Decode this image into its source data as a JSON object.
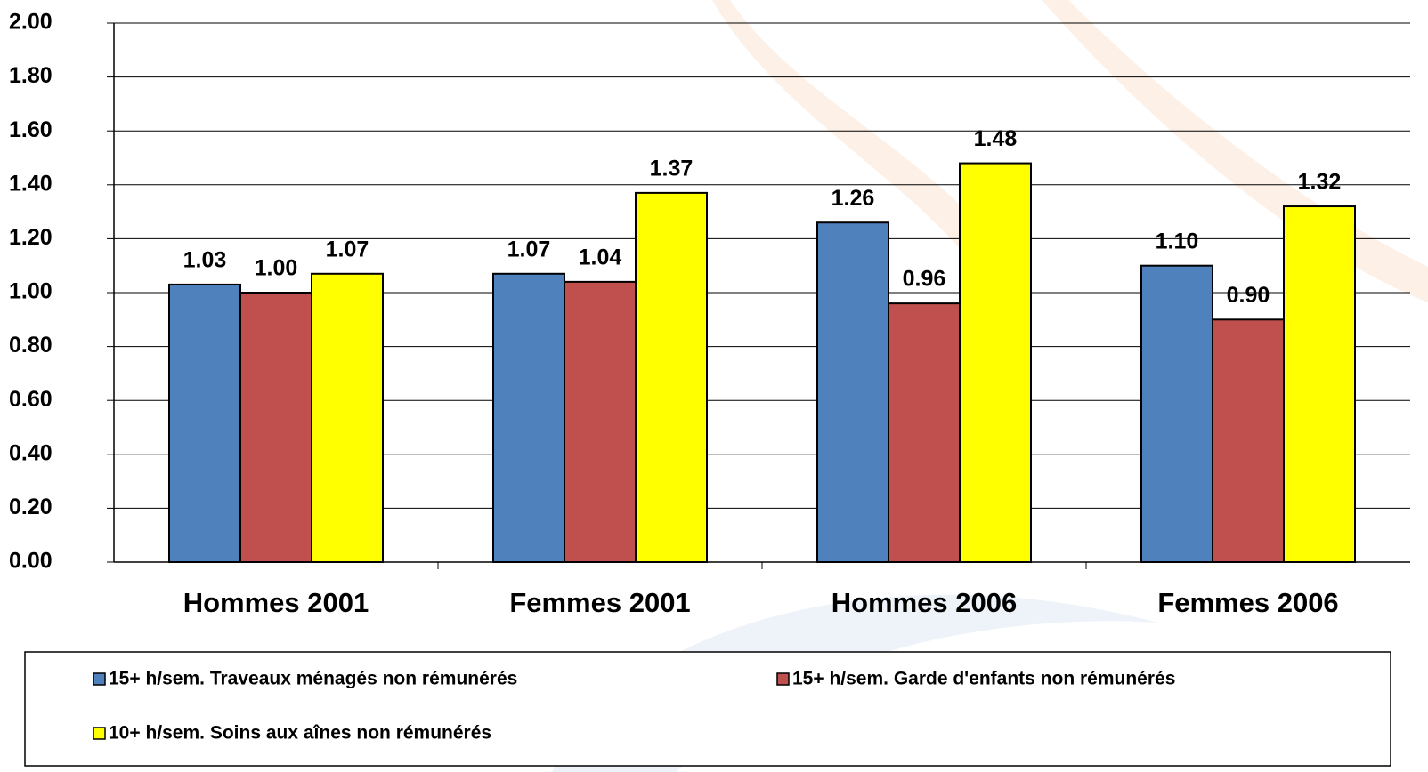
{
  "chart_data": {
    "type": "bar",
    "categories": [
      "Hommes  2001",
      "Femmes  2001",
      "Hommes  2006",
      "Femmes  2006"
    ],
    "series": [
      {
        "name": "15+ h/sem.  Traveaux ménagés non rémunérés",
        "color": "#4f81bd",
        "values": [
          1.03,
          1.07,
          1.26,
          1.1
        ],
        "value_labels": [
          "1.03",
          "1.07",
          "1.26",
          "1.10"
        ]
      },
      {
        "name": "15+ h/sem.  Garde d'enfants non rémunérés",
        "color": "#c0504d",
        "values": [
          1.0,
          1.04,
          0.96,
          0.9
        ],
        "value_labels": [
          "1.00",
          "1.04",
          "0.96",
          "0.90"
        ]
      },
      {
        "name": "10+ h/sem. Soins aux aînes non rémunérés",
        "color": "#ffff00",
        "values": [
          1.07,
          1.37,
          1.48,
          1.32
        ],
        "value_labels": [
          "1.07",
          "1.37",
          "1.48",
          "1.32"
        ]
      }
    ],
    "ylim": [
      0,
      2
    ],
    "yticks": [
      {
        "value": 0,
        "label": "0.00"
      },
      {
        "value": 0.2,
        "label": "0.20"
      },
      {
        "value": 0.4,
        "label": "0.40"
      },
      {
        "value": 0.6,
        "label": "0.60"
      },
      {
        "value": 0.8,
        "label": "0.80"
      },
      {
        "value": 1,
        "label": "1.00"
      },
      {
        "value": 1.2,
        "label": "1.20"
      },
      {
        "value": 1.4,
        "label": "1.40"
      },
      {
        "value": 1.6,
        "label": "1.60"
      },
      {
        "value": 1.8,
        "label": "1.80"
      },
      {
        "value": 2,
        "label": "2.00"
      }
    ],
    "grid": true
  }
}
